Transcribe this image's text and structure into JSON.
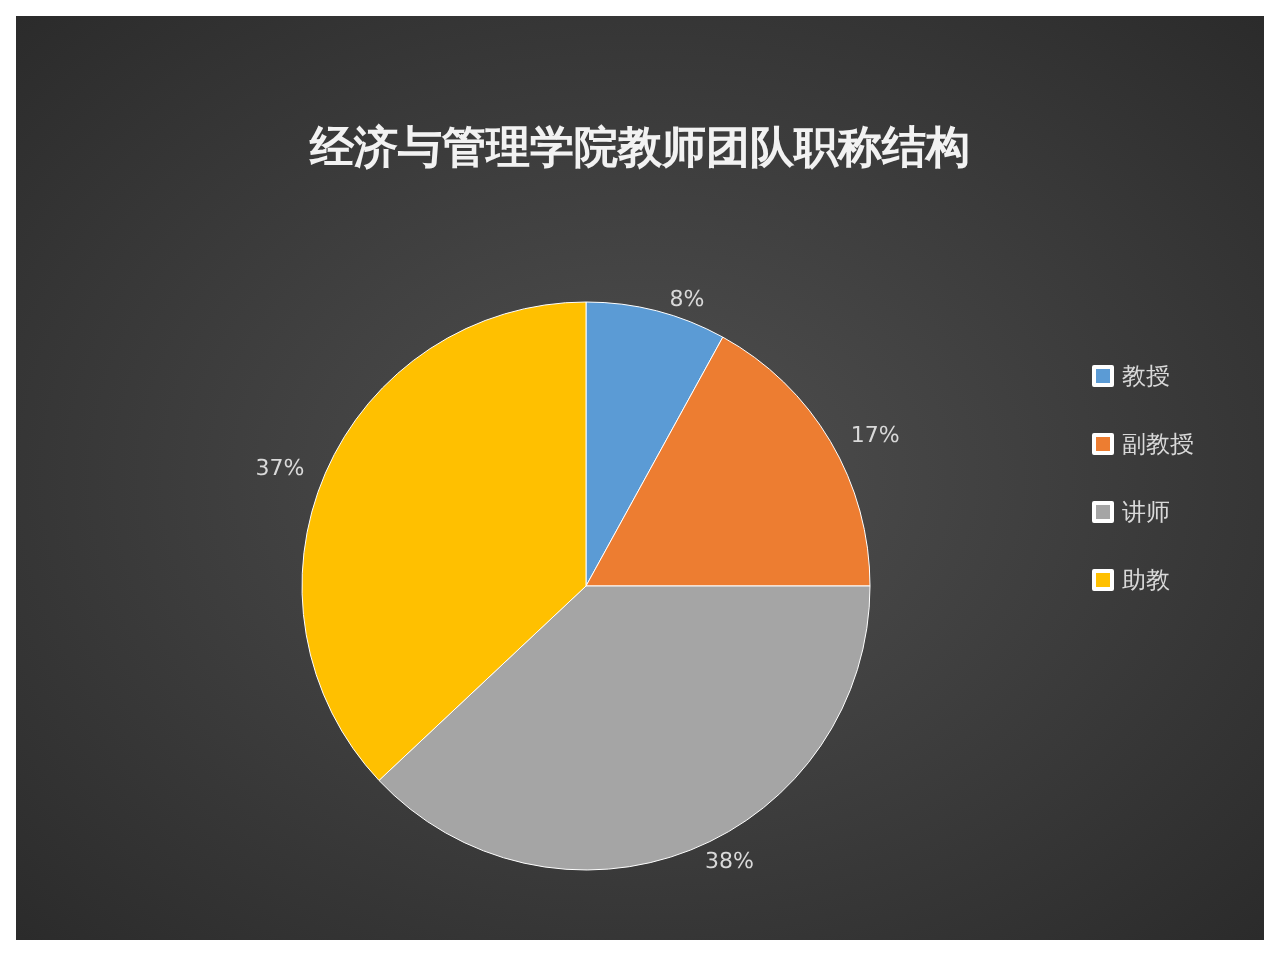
{
  "chart_data": {
    "type": "pie",
    "title": "经济与管理学院教师团队职称结构",
    "categories": [
      "教授",
      "副教授",
      "讲师",
      "助教"
    ],
    "values": [
      8,
      17,
      38,
      37
    ],
    "value_labels": [
      "8%",
      "17%",
      "38%",
      "37%"
    ],
    "colors": [
      "#5b9bd5",
      "#ed7d31",
      "#a5a5a5",
      "#ffc000"
    ],
    "legend": "right"
  }
}
